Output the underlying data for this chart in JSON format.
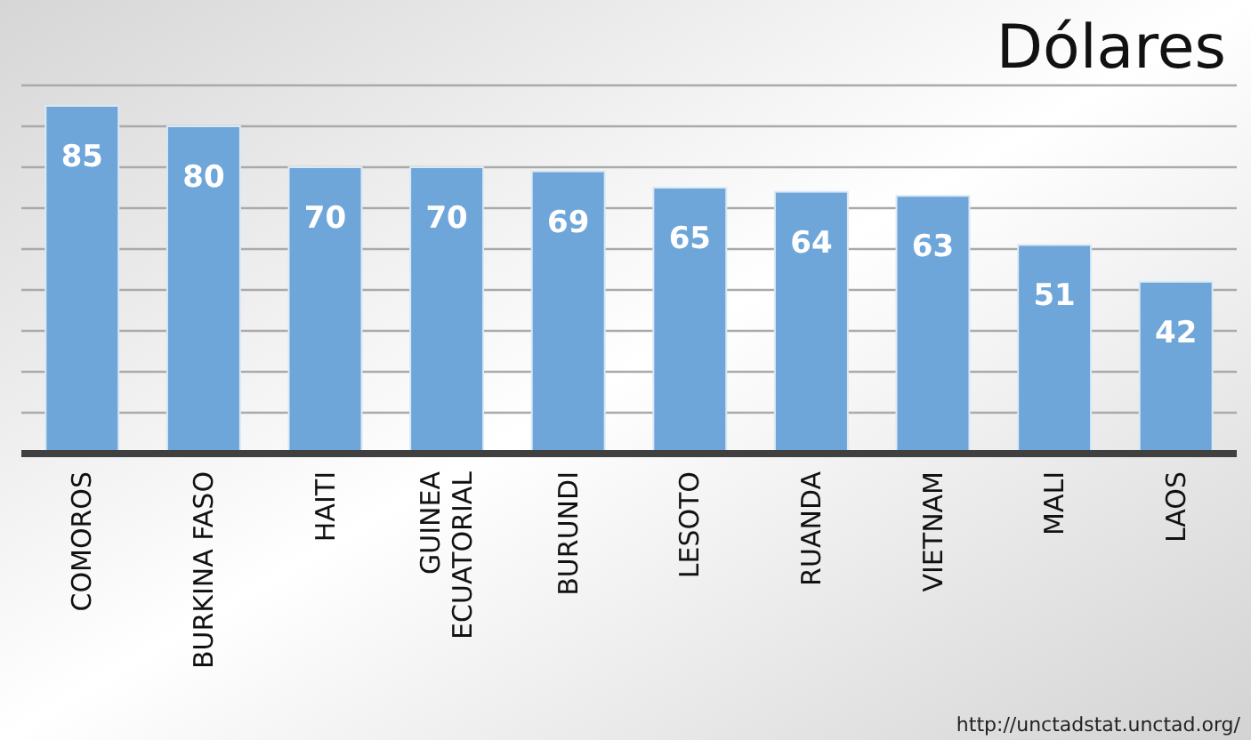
{
  "chart_data": {
    "type": "bar",
    "title": "Dólares",
    "categories": [
      "COMOROS",
      "BURKINA FASO",
      "HAITI",
      "GUINEA ECUATORIAL",
      "BURUNDI",
      "LESOTO",
      "RUANDA",
      "VIETNAM",
      "MALI",
      "LAOS"
    ],
    "values": [
      85,
      80,
      70,
      70,
      69,
      65,
      64,
      63,
      51,
      42
    ],
    "color": "#6fa6d9",
    "ylim": [
      0,
      90
    ],
    "yticks": [
      {
        "value": 0,
        "label": null
      },
      {
        "value": 10,
        "label": null
      },
      {
        "value": 20,
        "label": null
      },
      {
        "value": 30,
        "label": null
      },
      {
        "value": 40,
        "label": null
      },
      {
        "value": 50,
        "label": null
      },
      {
        "value": 60,
        "label": null
      },
      {
        "value": 70,
        "label": null
      },
      {
        "value": 80,
        "label": null
      },
      {
        "value": 90,
        "label": null
      }
    ],
    "grid": "y",
    "data_labels": true,
    "tick_labels": "x",
    "annotations": [
      "http://unctadstat.unctad.org/"
    ]
  }
}
